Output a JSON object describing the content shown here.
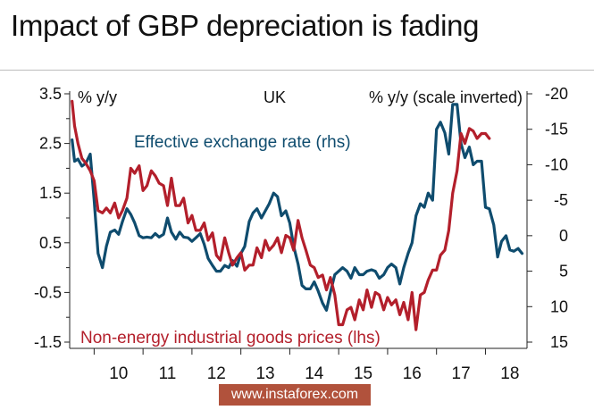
{
  "title": "Impact of GBP depreciation is fading",
  "watermark": "www.instaforex.com",
  "chart_data": {
    "type": "line",
    "annotation": "UK",
    "ylabel_left": "% y/y",
    "ylabel_right": "% y/y (scale inverted)",
    "ylim_left": [
      -1.5,
      3.5
    ],
    "yticks_left": [
      "3.5",
      "2.5",
      "1.5",
      "0.5",
      "-0.5",
      "-1.5"
    ],
    "ylim_right": [
      15,
      -20
    ],
    "right_inverted": true,
    "yticks_right": [
      "-20",
      "-15",
      "-10",
      "-5",
      "0",
      "5",
      "10",
      "15"
    ],
    "xlim": [
      2009.5,
      2018.85
    ],
    "x_tick_labels": [
      "10",
      "11",
      "12",
      "13",
      "14",
      "15",
      "16",
      "17",
      "18"
    ],
    "grid": false,
    "colors": {
      "eer": "#0f4c6e",
      "neig": "#b31f2b",
      "axis": "#222222",
      "watermark": "#b1523c"
    },
    "series": [
      {
        "name": "Non-energy industrial goods prices (lhs)",
        "axis": "left",
        "x": [
          2009.55,
          2009.6,
          2009.67,
          2009.75,
          2009.83,
          2009.92,
          2010.0,
          2010.08,
          2010.17,
          2010.25,
          2010.33,
          2010.42,
          2010.5,
          2010.58,
          2010.67,
          2010.75,
          2010.83,
          2010.92,
          2011.0,
          2011.08,
          2011.17,
          2011.25,
          2011.33,
          2011.42,
          2011.5,
          2011.58,
          2011.67,
          2011.75,
          2011.83,
          2011.92,
          2012.0,
          2012.08,
          2012.17,
          2012.25,
          2012.33,
          2012.42,
          2012.5,
          2012.58,
          2012.67,
          2012.75,
          2012.83,
          2012.92,
          2013.0,
          2013.08,
          2013.17,
          2013.25,
          2013.33,
          2013.42,
          2013.5,
          2013.58,
          2013.67,
          2013.75,
          2013.83,
          2013.92,
          2014.0,
          2014.08,
          2014.17,
          2014.25,
          2014.33,
          2014.42,
          2014.5,
          2014.58,
          2014.67,
          2014.75,
          2014.83,
          2014.92,
          2015.0,
          2015.08,
          2015.17,
          2015.25,
          2015.33,
          2015.42,
          2015.5,
          2015.58,
          2015.67,
          2015.75,
          2015.83,
          2015.92,
          2016.0,
          2016.08,
          2016.17,
          2016.25,
          2016.33,
          2016.42,
          2016.5,
          2016.58,
          2016.67,
          2016.75,
          2016.83,
          2016.92,
          2017.0,
          2017.08,
          2017.17,
          2017.25,
          2017.33,
          2017.42,
          2017.5,
          2017.58,
          2017.67,
          2017.75,
          2017.83,
          2017.92,
          2018.0,
          2018.08
        ],
        "y": [
          3.35,
          2.85,
          2.5,
          2.2,
          2.1,
          1.95,
          1.75,
          1.15,
          1.1,
          1.2,
          1.1,
          1.3,
          1.0,
          1.15,
          1.4,
          2.0,
          1.9,
          2.05,
          1.55,
          1.65,
          1.95,
          1.85,
          1.7,
          1.65,
          1.25,
          1.8,
          1.25,
          1.25,
          1.4,
          0.9,
          1.05,
          0.75,
          0.75,
          0.9,
          0.55,
          0.7,
          0.25,
          0.15,
          0.6,
          0.3,
          0.05,
          0.2,
          0.3,
          -0.05,
          0.05,
          0.05,
          0.4,
          0.2,
          0.55,
          0.35,
          0.45,
          0.6,
          0.3,
          0.65,
          0.6,
          0.35,
          0.95,
          0.6,
          0.35,
          0.05,
          0.0,
          -0.2,
          -0.15,
          -0.45,
          -0.2,
          -0.55,
          -1.15,
          -1.15,
          -0.85,
          -0.8,
          -1.05,
          -0.65,
          -0.85,
          -0.45,
          -0.8,
          -0.5,
          -0.55,
          -0.85,
          -0.6,
          -0.75,
          -0.65,
          -0.95,
          -0.7,
          -1.05,
          -0.5,
          -1.25,
          -0.55,
          -0.5,
          -0.25,
          -0.05,
          -0.05,
          0.25,
          0.35,
          0.75,
          1.5,
          1.95,
          2.7,
          2.5,
          2.8,
          2.75,
          2.6,
          2.7,
          2.7,
          2.6
        ]
      },
      {
        "name": "Effective exchange rate (rhs)",
        "axis": "right",
        "x": [
          2009.55,
          2009.6,
          2009.67,
          2009.75,
          2009.83,
          2009.92,
          2010.0,
          2010.08,
          2010.17,
          2010.25,
          2010.33,
          2010.42,
          2010.5,
          2010.58,
          2010.67,
          2010.75,
          2010.83,
          2010.92,
          2011.0,
          2011.08,
          2011.17,
          2011.25,
          2011.33,
          2011.42,
          2011.5,
          2011.58,
          2011.67,
          2011.75,
          2011.83,
          2011.92,
          2012.0,
          2012.08,
          2012.17,
          2012.25,
          2012.33,
          2012.42,
          2012.5,
          2012.58,
          2012.67,
          2012.75,
          2012.83,
          2012.92,
          2013.0,
          2013.08,
          2013.17,
          2013.25,
          2013.33,
          2013.42,
          2013.5,
          2013.58,
          2013.67,
          2013.75,
          2013.83,
          2013.92,
          2014.0,
          2014.08,
          2014.17,
          2014.25,
          2014.33,
          2014.42,
          2014.5,
          2014.58,
          2014.67,
          2014.75,
          2014.83,
          2014.92,
          2015.0,
          2015.08,
          2015.17,
          2015.25,
          2015.33,
          2015.42,
          2015.5,
          2015.58,
          2015.67,
          2015.75,
          2015.83,
          2015.92,
          2016.0,
          2016.08,
          2016.17,
          2016.25,
          2016.33,
          2016.42,
          2016.5,
          2016.58,
          2016.67,
          2016.75,
          2016.83,
          2016.92,
          2017.0,
          2017.08,
          2017.17,
          2017.25,
          2017.33,
          2017.42,
          2017.5,
          2017.58,
          2017.67,
          2017.75,
          2017.83,
          2017.92,
          2018.0,
          2018.08,
          2018.17,
          2018.25,
          2018.33,
          2018.42,
          2018.5,
          2018.58,
          2018.67,
          2018.75
        ],
        "y": [
          -13.5,
          -10.5,
          -10.8,
          -9.8,
          -10.2,
          -11.5,
          -5.0,
          2.5,
          4.5,
          1.5,
          -0.5,
          -0.8,
          -0.2,
          -2.0,
          -3.8,
          -3.0,
          -1.8,
          0.0,
          0.3,
          0.2,
          0.3,
          -0.3,
          0.2,
          -0.2,
          -2.5,
          -0.5,
          0.5,
          -0.5,
          0.2,
          0.3,
          0.8,
          0.3,
          -0.3,
          1.2,
          3.2,
          4.2,
          5.0,
          5.0,
          4.2,
          4.5,
          3.5,
          4.3,
          2.5,
          1.5,
          -2.0,
          -3.2,
          -3.8,
          -2.5,
          -3.5,
          -4.5,
          -6.0,
          -5.5,
          -2.8,
          -3.5,
          -1.8,
          1.5,
          4.0,
          7.0,
          7.5,
          7.5,
          6.5,
          7.8,
          9.5,
          10.5,
          8.0,
          5.5,
          5.0,
          4.5,
          5.0,
          6.0,
          4.5,
          5.5,
          5.5,
          5.0,
          4.8,
          5.0,
          6.0,
          5.5,
          4.5,
          4.0,
          4.5,
          6.8,
          4.5,
          2.5,
          1.0,
          -2.8,
          -4.5,
          -4.0,
          -6.0,
          -5.0,
          -15.0,
          -16.0,
          -14.5,
          -11.5,
          -18.5,
          -18.5,
          -13.0,
          -11.0,
          -12.5,
          -10.0,
          -10.5,
          -10.5,
          -4.0,
          -3.8,
          -1.5,
          3.0,
          0.8,
          0.0,
          2.0,
          2.2,
          1.8,
          2.5
        ]
      }
    ],
    "labels": {
      "eer": "Effective exchange rate (rhs)",
      "neig": "Non-energy industrial goods prices (lhs)"
    }
  }
}
